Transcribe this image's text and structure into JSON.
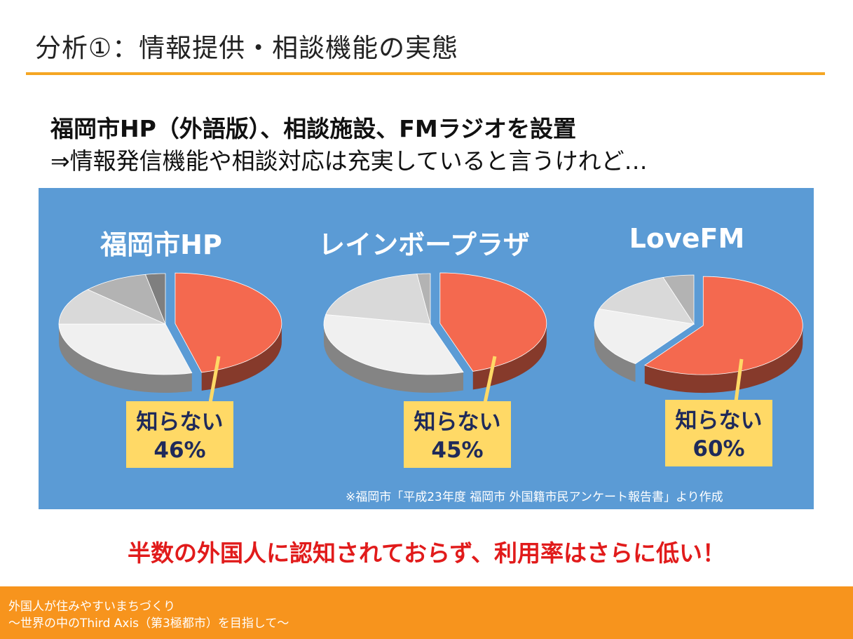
{
  "slide": {
    "title": "分析①：情報提供・相談機能の実態",
    "headline": "福岡市HP（外語版）、相談施設、FMラジオを設置",
    "subline": "⇒情報発信機能や相談対応は充実していると言うけれど…",
    "source_note": "※福岡市「平成23年度 福岡市 外国籍市民アンケート報告書」より作成",
    "conclusion": "半数の外国人に認知されておらず、利用率はさらに低い！",
    "footer": {
      "line1": "外国人が住みやすいまちづくり",
      "line2": "～世界の中のThird Axis（第3極都市）を目指して～"
    },
    "colors": {
      "accent": "#f5a623",
      "panel_bg": "#5b9bd5",
      "highlight_slice": "#f4694f",
      "callout_bg": "#ffd966",
      "conclusion_text": "#e11b1b",
      "footer_bg": "#f7941d"
    }
  },
  "chart_data": [
    {
      "type": "pie",
      "title": "福岡市HP",
      "annotation": {
        "label": "知らない",
        "value_text": "46%"
      },
      "slices": [
        {
          "label": "知らない",
          "value": 46,
          "highlight": true
        },
        {
          "label": "",
          "value": 29
        },
        {
          "label": "",
          "value": 12
        },
        {
          "label": "",
          "value": 10
        },
        {
          "label": "",
          "value": 3
        }
      ]
    },
    {
      "type": "pie",
      "title": "レインボープラザ",
      "annotation": {
        "label": "知らない",
        "value_text": "45%"
      },
      "slices": [
        {
          "label": "知らない",
          "value": 45,
          "highlight": true
        },
        {
          "label": "",
          "value": 33
        },
        {
          "label": "",
          "value": 20
        },
        {
          "label": "",
          "value": 2
        }
      ]
    },
    {
      "type": "pie",
      "title": "LoveFM",
      "annotation": {
        "label": "知らない",
        "value_text": "60%"
      },
      "slices": [
        {
          "label": "知らない",
          "value": 60,
          "highlight": true
        },
        {
          "label": "",
          "value": 20
        },
        {
          "label": "",
          "value": 15
        },
        {
          "label": "",
          "value": 5
        }
      ]
    }
  ]
}
